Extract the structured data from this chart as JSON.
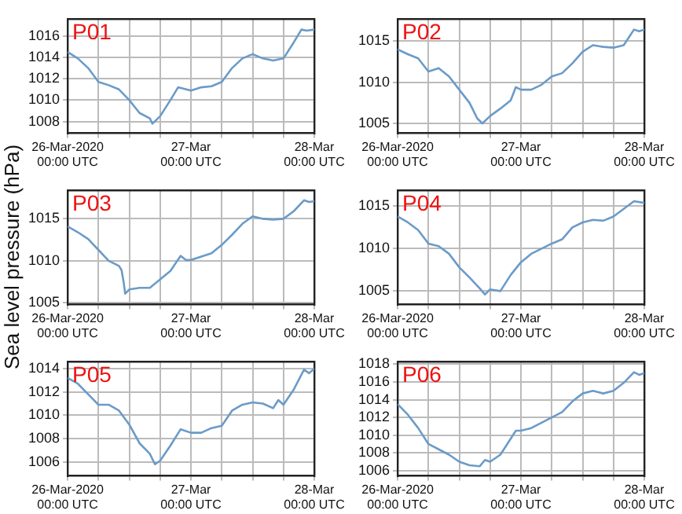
{
  "chart_data": [
    {
      "type": "line",
      "title": "P01",
      "xlim": [
        "2020-03-26T00:00",
        "2020-03-28T00:00"
      ],
      "xticks": [
        {
          "value": "2020-03-26T00:00",
          "label": "26-Mar-2020\n00:00 UTC"
        },
        {
          "value": "2020-03-26T06:00",
          "label": null
        },
        {
          "value": "2020-03-26T12:00",
          "label": null
        },
        {
          "value": "2020-03-26T18:00",
          "label": null
        },
        {
          "value": "2020-03-27T00:00",
          "label": "27-Mar\n00:00 UTC"
        },
        {
          "value": "2020-03-27T06:00",
          "label": null
        },
        {
          "value": "2020-03-27T12:00",
          "label": null
        },
        {
          "value": "2020-03-27T18:00",
          "label": null
        },
        {
          "value": "2020-03-28T00:00",
          "label": "28-Mar\n00:00 UTC"
        }
      ],
      "ylim": [
        1006.9,
        1017.6
      ],
      "yticks": [
        1008,
        1010,
        1012,
        1014,
        1016
      ],
      "grid": true,
      "x": [
        "2020-03-26T00:00",
        "2020-03-26T02:00",
        "2020-03-26T04:00",
        "2020-03-26T06:00",
        "2020-03-26T08:00",
        "2020-03-26T10:00",
        "2020-03-26T12:00",
        "2020-03-26T14:00",
        "2020-03-26T16:00",
        "2020-03-26T16:30",
        "2020-03-26T18:00",
        "2020-03-26T20:00",
        "2020-03-26T21:30",
        "2020-03-27T00:00",
        "2020-03-27T02:00",
        "2020-03-27T04:00",
        "2020-03-27T06:00",
        "2020-03-27T08:00",
        "2020-03-27T10:00",
        "2020-03-27T12:00",
        "2020-03-27T14:00",
        "2020-03-27T16:00",
        "2020-03-27T18:00",
        "2020-03-27T20:00",
        "2020-03-27T21:30",
        "2020-03-27T22:30",
        "2020-03-28T00:00"
      ],
      "series": [
        {
          "color": "#6b9bc8",
          "values": [
            1014.5,
            1013.9,
            1013.0,
            1011.7,
            1011.4,
            1011.0,
            1010.0,
            1008.8,
            1008.3,
            1007.8,
            1008.5,
            1010.0,
            1011.2,
            1010.9,
            1011.2,
            1011.3,
            1011.7,
            1013.0,
            1013.9,
            1014.3,
            1013.9,
            1013.7,
            1013.9,
            1015.4,
            1016.6,
            1016.5,
            1016.6
          ]
        }
      ]
    },
    {
      "type": "line",
      "title": "P02",
      "xlim": [
        "2020-03-26T00:00",
        "2020-03-28T00:00"
      ],
      "xticks": [
        {
          "value": "2020-03-26T00:00",
          "label": "26-Mar-2020\n00:00 UTC"
        },
        {
          "value": "2020-03-26T06:00",
          "label": null
        },
        {
          "value": "2020-03-26T12:00",
          "label": null
        },
        {
          "value": "2020-03-26T18:00",
          "label": null
        },
        {
          "value": "2020-03-27T00:00",
          "label": "27-Mar\n00:00 UTC"
        },
        {
          "value": "2020-03-27T06:00",
          "label": null
        },
        {
          "value": "2020-03-27T12:00",
          "label": null
        },
        {
          "value": "2020-03-27T18:00",
          "label": null
        },
        {
          "value": "2020-03-28T00:00",
          "label": "28-Mar\n00:00 UTC"
        }
      ],
      "ylim": [
        1003.8,
        1017.7
      ],
      "yticks": [
        1005,
        1010,
        1015
      ],
      "grid": true,
      "x": [
        "2020-03-26T00:00",
        "2020-03-26T02:00",
        "2020-03-26T04:00",
        "2020-03-26T06:00",
        "2020-03-26T08:00",
        "2020-03-26T10:00",
        "2020-03-26T12:00",
        "2020-03-26T14:00",
        "2020-03-26T15:30",
        "2020-03-26T16:30",
        "2020-03-26T18:00",
        "2020-03-26T20:00",
        "2020-03-26T22:00",
        "2020-03-26T23:00",
        "2020-03-27T00:00",
        "2020-03-27T02:00",
        "2020-03-27T04:00",
        "2020-03-27T06:00",
        "2020-03-27T08:00",
        "2020-03-27T10:00",
        "2020-03-27T12:00",
        "2020-03-27T14:00",
        "2020-03-27T16:00",
        "2020-03-27T18:00",
        "2020-03-27T20:00",
        "2020-03-27T22:00",
        "2020-03-27T23:00",
        "2020-03-28T00:00"
      ],
      "series": [
        {
          "color": "#6b9bc8",
          "values": [
            1014.0,
            1013.4,
            1012.9,
            1011.3,
            1011.7,
            1010.7,
            1009.1,
            1007.5,
            1005.6,
            1005.0,
            1005.9,
            1006.8,
            1007.8,
            1009.4,
            1009.1,
            1009.1,
            1009.7,
            1010.7,
            1011.1,
            1012.3,
            1013.7,
            1014.5,
            1014.3,
            1014.2,
            1014.5,
            1016.4,
            1016.2,
            1016.4
          ]
        }
      ]
    },
    {
      "type": "line",
      "title": "P03",
      "ylabel": "Sea level pressure (hPa)",
      "xlim": [
        "2020-03-26T00:00",
        "2020-03-28T00:00"
      ],
      "xticks": [
        {
          "value": "2020-03-26T00:00",
          "label": "26-Mar-2020\n00:00 UTC"
        },
        {
          "value": "2020-03-26T06:00",
          "label": null
        },
        {
          "value": "2020-03-26T12:00",
          "label": null
        },
        {
          "value": "2020-03-26T18:00",
          "label": null
        },
        {
          "value": "2020-03-27T00:00",
          "label": "27-Mar\n00:00 UTC"
        },
        {
          "value": "2020-03-27T06:00",
          "label": null
        },
        {
          "value": "2020-03-27T12:00",
          "label": null
        },
        {
          "value": "2020-03-27T18:00",
          "label": null
        },
        {
          "value": "2020-03-28T00:00",
          "label": "28-Mar\n00:00 UTC"
        }
      ],
      "ylim": [
        1004.8,
        1018.4
      ],
      "yticks": [
        1005,
        1010,
        1015
      ],
      "grid": true,
      "x": [
        "2020-03-26T00:00",
        "2020-03-26T02:00",
        "2020-03-26T04:00",
        "2020-03-26T06:00",
        "2020-03-26T08:00",
        "2020-03-26T10:00",
        "2020-03-26T10:30",
        "2020-03-26T10:54",
        "2020-03-26T11:12",
        "2020-03-26T12:00",
        "2020-03-26T14:00",
        "2020-03-26T16:00",
        "2020-03-26T18:00",
        "2020-03-26T20:00",
        "2020-03-26T22:00",
        "2020-03-26T23:00",
        "2020-03-27T00:00",
        "2020-03-27T02:00",
        "2020-03-27T04:00",
        "2020-03-27T06:00",
        "2020-03-27T08:00",
        "2020-03-27T10:00",
        "2020-03-27T12:00",
        "2020-03-27T14:00",
        "2020-03-27T16:00",
        "2020-03-27T18:00",
        "2020-03-27T20:00",
        "2020-03-27T22:00",
        "2020-03-27T23:00",
        "2020-03-28T00:00"
      ],
      "series": [
        {
          "color": "#6b9bc8",
          "values": [
            1014.1,
            1013.4,
            1012.6,
            1011.3,
            1010.0,
            1009.4,
            1008.9,
            1007.5,
            1006.1,
            1006.6,
            1006.8,
            1006.8,
            1007.8,
            1008.8,
            1010.6,
            1010.1,
            1010.1,
            1010.5,
            1010.9,
            1011.9,
            1013.1,
            1014.4,
            1015.3,
            1015.0,
            1014.9,
            1015.0,
            1015.9,
            1017.2,
            1017.0,
            1017.1
          ]
        }
      ]
    },
    {
      "type": "line",
      "title": "P04",
      "xlim": [
        "2020-03-26T00:00",
        "2020-03-28T00:00"
      ],
      "xticks": [
        {
          "value": "2020-03-26T00:00",
          "label": "26-Mar-2020\n00:00 UTC"
        },
        {
          "value": "2020-03-26T06:00",
          "label": null
        },
        {
          "value": "2020-03-26T12:00",
          "label": null
        },
        {
          "value": "2020-03-26T18:00",
          "label": null
        },
        {
          "value": "2020-03-27T00:00",
          "label": "27-Mar\n00:00 UTC"
        },
        {
          "value": "2020-03-27T06:00",
          "label": null
        },
        {
          "value": "2020-03-27T12:00",
          "label": null
        },
        {
          "value": "2020-03-27T18:00",
          "label": null
        },
        {
          "value": "2020-03-28T00:00",
          "label": "28-Mar\n00:00 UTC"
        }
      ],
      "ylim": [
        1003.4,
        1016.9
      ],
      "yticks": [
        1005,
        1010,
        1015
      ],
      "grid": true,
      "x": [
        "2020-03-26T00:00",
        "2020-03-26T02:00",
        "2020-03-26T04:00",
        "2020-03-26T06:00",
        "2020-03-26T08:00",
        "2020-03-26T10:00",
        "2020-03-26T12:00",
        "2020-03-26T14:00",
        "2020-03-26T16:00",
        "2020-03-26T17:00",
        "2020-03-26T18:00",
        "2020-03-26T20:00",
        "2020-03-26T22:00",
        "2020-03-27T00:00",
        "2020-03-27T02:00",
        "2020-03-27T04:00",
        "2020-03-27T06:00",
        "2020-03-27T08:00",
        "2020-03-27T10:00",
        "2020-03-27T12:00",
        "2020-03-27T14:00",
        "2020-03-27T16:00",
        "2020-03-27T18:00",
        "2020-03-27T20:00",
        "2020-03-27T22:00",
        "2020-03-28T00:00"
      ],
      "series": [
        {
          "color": "#6b9bc8",
          "values": [
            1013.8,
            1013.1,
            1012.2,
            1010.6,
            1010.3,
            1009.4,
            1007.8,
            1006.6,
            1005.3,
            1004.6,
            1005.2,
            1005.0,
            1006.9,
            1008.4,
            1009.4,
            1010.0,
            1010.6,
            1011.1,
            1012.5,
            1013.1,
            1013.4,
            1013.3,
            1013.8,
            1014.7,
            1015.6,
            1015.4
          ]
        }
      ]
    },
    {
      "type": "line",
      "title": "P05",
      "xlim": [
        "2020-03-26T00:00",
        "2020-03-28T00:00"
      ],
      "xticks": [
        {
          "value": "2020-03-26T00:00",
          "label": "26-Mar-2020\n00:00 UTC"
        },
        {
          "value": "2020-03-26T06:00",
          "label": null
        },
        {
          "value": "2020-03-26T12:00",
          "label": null
        },
        {
          "value": "2020-03-26T18:00",
          "label": null
        },
        {
          "value": "2020-03-27T00:00",
          "label": "27-Mar\n00:00 UTC"
        },
        {
          "value": "2020-03-27T06:00",
          "label": null
        },
        {
          "value": "2020-03-27T12:00",
          "label": null
        },
        {
          "value": "2020-03-27T18:00",
          "label": null
        },
        {
          "value": "2020-03-28T00:00",
          "label": "28-Mar\n00:00 UTC"
        }
      ],
      "ylim": [
        1004.8,
        1014.6
      ],
      "yticks": [
        1006,
        1008,
        1010,
        1012,
        1014
      ],
      "grid": true,
      "x": [
        "2020-03-26T00:00",
        "2020-03-26T02:00",
        "2020-03-26T04:00",
        "2020-03-26T06:00",
        "2020-03-26T08:00",
        "2020-03-26T10:00",
        "2020-03-26T12:00",
        "2020-03-26T14:00",
        "2020-03-26T16:00",
        "2020-03-26T17:00",
        "2020-03-26T18:00",
        "2020-03-26T20:00",
        "2020-03-26T22:00",
        "2020-03-27T00:00",
        "2020-03-27T02:00",
        "2020-03-27T04:00",
        "2020-03-27T06:00",
        "2020-03-27T08:00",
        "2020-03-27T10:00",
        "2020-03-27T12:00",
        "2020-03-27T14:00",
        "2020-03-27T16:00",
        "2020-03-27T17:00",
        "2020-03-27T18:00",
        "2020-03-27T20:00",
        "2020-03-27T22:00",
        "2020-03-27T23:00",
        "2020-03-28T00:00"
      ],
      "series": [
        {
          "color": "#6b9bc8",
          "values": [
            1013.2,
            1012.7,
            1011.8,
            1010.9,
            1010.9,
            1010.4,
            1009.2,
            1007.6,
            1006.7,
            1005.8,
            1006.1,
            1007.4,
            1008.8,
            1008.5,
            1008.5,
            1008.9,
            1009.1,
            1010.4,
            1010.9,
            1011.1,
            1011.0,
            1010.6,
            1011.3,
            1010.9,
            1012.2,
            1013.9,
            1013.6,
            1014.0
          ]
        }
      ]
    },
    {
      "type": "line",
      "title": "P06",
      "xlim": [
        "2020-03-26T00:00",
        "2020-03-28T00:00"
      ],
      "xticks": [
        {
          "value": "2020-03-26T00:00",
          "label": "26-Mar-2020\n00:00 UTC"
        },
        {
          "value": "2020-03-26T06:00",
          "label": null
        },
        {
          "value": "2020-03-26T12:00",
          "label": null
        },
        {
          "value": "2020-03-26T18:00",
          "label": null
        },
        {
          "value": "2020-03-27T00:00",
          "label": "27-Mar\n00:00 UTC"
        },
        {
          "value": "2020-03-27T06:00",
          "label": null
        },
        {
          "value": "2020-03-27T12:00",
          "label": null
        },
        {
          "value": "2020-03-27T18:00",
          "label": null
        },
        {
          "value": "2020-03-28T00:00",
          "label": "28-Mar\n00:00 UTC"
        }
      ],
      "ylim": [
        1005.4,
        1018.3
      ],
      "yticks": [
        1006,
        1008,
        1010,
        1012,
        1014,
        1016,
        1018
      ],
      "grid": true,
      "x": [
        "2020-03-26T00:00",
        "2020-03-26T02:00",
        "2020-03-26T04:00",
        "2020-03-26T06:00",
        "2020-03-26T08:00",
        "2020-03-26T10:00",
        "2020-03-26T12:00",
        "2020-03-26T14:00",
        "2020-03-26T16:00",
        "2020-03-26T17:00",
        "2020-03-26T18:00",
        "2020-03-26T20:00",
        "2020-03-26T22:00",
        "2020-03-26T23:00",
        "2020-03-27T00:00",
        "2020-03-27T02:00",
        "2020-03-27T04:00",
        "2020-03-27T06:00",
        "2020-03-27T08:00",
        "2020-03-27T10:00",
        "2020-03-27T12:00",
        "2020-03-27T14:00",
        "2020-03-27T16:00",
        "2020-03-27T18:00",
        "2020-03-27T20:00",
        "2020-03-27T22:00",
        "2020-03-27T23:00",
        "2020-03-28T00:00"
      ],
      "series": [
        {
          "color": "#6b9bc8",
          "values": [
            1013.5,
            1012.3,
            1010.8,
            1009.0,
            1008.4,
            1007.8,
            1007.0,
            1006.6,
            1006.5,
            1007.2,
            1007.0,
            1007.8,
            1009.6,
            1010.5,
            1010.5,
            1010.8,
            1011.4,
            1012.0,
            1012.6,
            1013.8,
            1014.7,
            1015.0,
            1014.7,
            1015.0,
            1015.9,
            1017.1,
            1016.8,
            1017.0
          ]
        }
      ]
    }
  ]
}
